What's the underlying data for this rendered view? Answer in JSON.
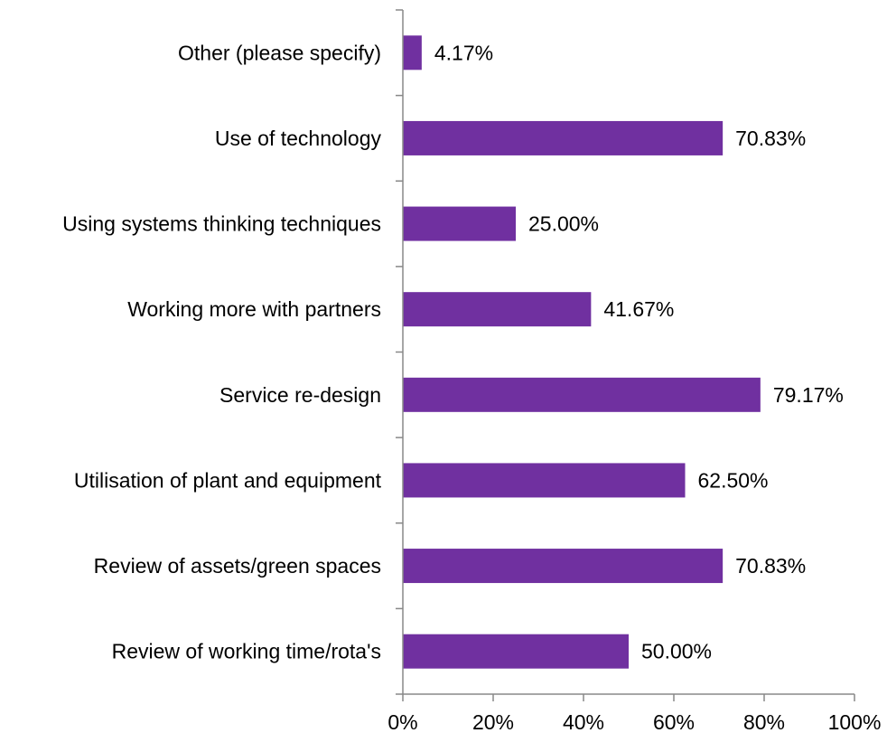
{
  "chart_data": {
    "type": "bar",
    "orientation": "horizontal",
    "categories": [
      "Other (please specify)",
      "Use of technology",
      "Using systems thinking techniques",
      "Working more with partners",
      "Service re-design",
      "Utilisation of plant and equipment",
      "Review of assets/green spaces",
      "Review of working time/rota's"
    ],
    "values": [
      4.17,
      70.83,
      25.0,
      41.67,
      79.17,
      62.5,
      70.83,
      50.0
    ],
    "value_labels": [
      "4.17%",
      "70.83%",
      "25.00%",
      "41.67%",
      "79.17%",
      "62.50%",
      "70.83%",
      "50.00%"
    ],
    "xlim": [
      0,
      100
    ],
    "x_ticks": [
      0,
      20,
      40,
      60,
      80,
      100
    ],
    "x_tick_labels": [
      "0%",
      "20%",
      "40%",
      "60%",
      "80%",
      "100%"
    ],
    "title": "",
    "xlabel": "",
    "ylabel": "",
    "grid": false,
    "bar_color": "#7030a0",
    "axis_color": "#888888"
  }
}
